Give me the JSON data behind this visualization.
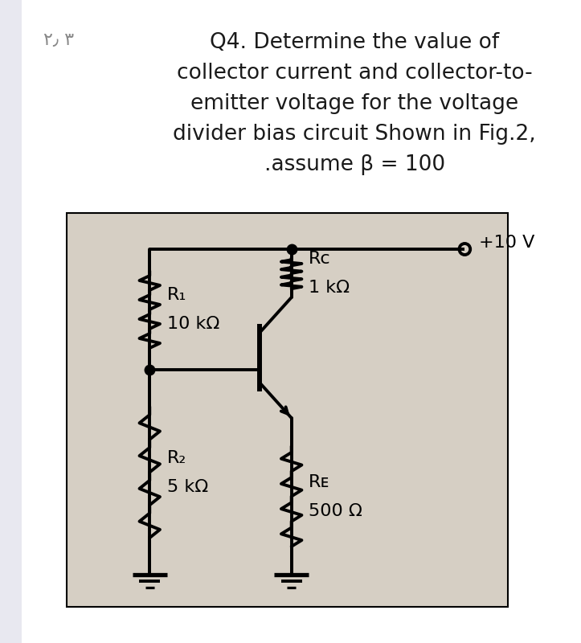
{
  "bg_color": "#ffffff",
  "left_stripe_color": "#e8e8f0",
  "text_color": "#1a1a1a",
  "question_text_line1": "Q4. Determine the value of",
  "question_text_line2": "collector current and collector-to-",
  "question_text_line3": "emitter voltage for the voltage",
  "question_text_line4": "divider bias circuit Shown in Fig.2,",
  "question_text_line5": ".assume β = 100",
  "prefix_text": "۲٫ ۳",
  "circuit_bg": "#d6cfc4",
  "R1_label": "R₁",
  "R1_value": "10 kΩ",
  "R2_label": "R₂",
  "R2_value": "5 kΩ",
  "RC_label": "Rᴄ",
  "RC_value": "1 kΩ",
  "RE_label": "Rᴇ",
  "RE_value": "500 Ω",
  "VCC_label": "+10 V",
  "font_size_question": 19,
  "font_size_circuit": 15
}
